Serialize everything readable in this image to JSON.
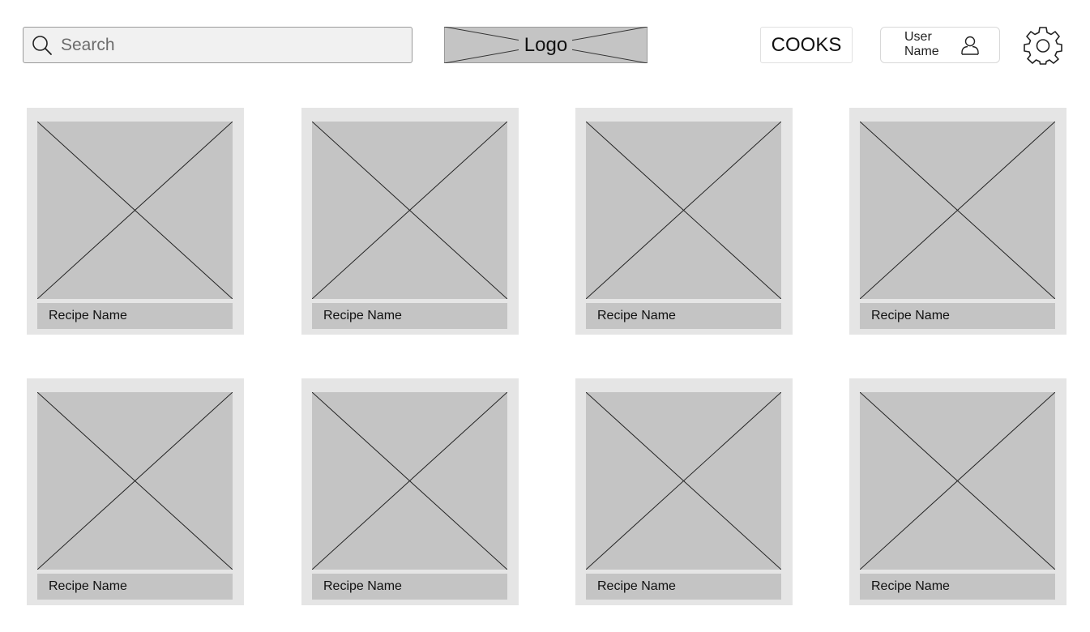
{
  "header": {
    "search": {
      "placeholder": "Search",
      "icon": "search-icon"
    },
    "logo": {
      "label": "Logo"
    },
    "cooks_label": "COOKS",
    "user": {
      "line1": "User",
      "line2": "Name",
      "icon": "user-icon"
    },
    "settings_icon": "gear-icon"
  },
  "recipes": [
    {
      "name": "Recipe Name"
    },
    {
      "name": "Recipe Name"
    },
    {
      "name": "Recipe Name"
    },
    {
      "name": "Recipe Name"
    },
    {
      "name": "Recipe Name"
    },
    {
      "name": "Recipe Name"
    },
    {
      "name": "Recipe Name"
    },
    {
      "name": "Recipe Name"
    }
  ],
  "colors": {
    "placeholder_fill": "#c4c4c4",
    "card_bg": "#e5e5e5",
    "search_bg": "#f1f1f1"
  }
}
